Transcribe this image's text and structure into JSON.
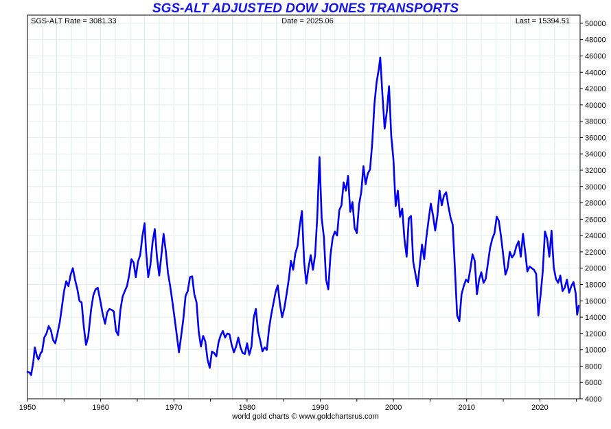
{
  "chart_data": {
    "type": "line",
    "title": "SGS-ALT ADJUSTED DOW JONES TRANSPORTS",
    "info": {
      "left": "SGS-ALT Rate = 3081.33",
      "center": "Date = 2025.06",
      "right": "Last = 15394.51"
    },
    "footer": "world gold charts © www.goldchartsrus.com",
    "xlim": [
      1950,
      2025.5
    ],
    "ylim": [
      4000,
      51000
    ],
    "x_ticks": [
      1950,
      1960,
      1970,
      1980,
      1990,
      2000,
      2010,
      2020
    ],
    "y_ticks": [
      4000,
      6000,
      8000,
      10000,
      12000,
      14000,
      16000,
      18000,
      20000,
      22000,
      24000,
      26000,
      28000,
      30000,
      32000,
      34000,
      36000,
      38000,
      40000,
      42000,
      44000,
      46000,
      48000,
      50000
    ],
    "y_axis_position": "right",
    "grid": true,
    "line_color": "#0000ee",
    "series": [
      {
        "x": [
          1950.0,
          1950.3,
          1950.5,
          1950.8,
          1951.0,
          1951.3,
          1951.5,
          1951.8,
          1952.0,
          1952.3,
          1952.6,
          1952.9,
          1953.2,
          1953.5,
          1953.8,
          1954.1,
          1954.4,
          1954.7,
          1955.0,
          1955.3,
          1955.6,
          1955.9,
          1956.2,
          1956.5,
          1956.8,
          1957.1,
          1957.4,
          1957.7,
          1958.0,
          1958.3,
          1958.7,
          1959.0,
          1959.3,
          1959.6,
          1960.0,
          1960.3,
          1960.6,
          1960.9,
          1961.2,
          1961.5,
          1961.8,
          1962.1,
          1962.4,
          1962.7,
          1963.0,
          1963.3,
          1963.6,
          1963.9,
          1964.2,
          1964.5,
          1964.8,
          1965.1,
          1965.4,
          1965.7,
          1966.0,
          1966.2,
          1966.5,
          1966.8,
          1967.1,
          1967.4,
          1967.7,
          1968.0,
          1968.3,
          1968.6,
          1968.9,
          1969.2,
          1969.5,
          1969.8,
          1970.1,
          1970.4,
          1970.7,
          1971.0,
          1971.3,
          1971.6,
          1971.9,
          1972.2,
          1972.5,
          1972.8,
          1973.1,
          1973.4,
          1973.7,
          1974.0,
          1974.3,
          1974.6,
          1974.9,
          1975.2,
          1975.5,
          1975.8,
          1976.1,
          1976.4,
          1976.7,
          1977.0,
          1977.3,
          1977.6,
          1977.9,
          1978.2,
          1978.5,
          1978.8,
          1979.1,
          1979.4,
          1979.7,
          1980.0,
          1980.3,
          1980.6,
          1980.9,
          1981.2,
          1981.5,
          1981.8,
          1982.1,
          1982.4,
          1982.7,
          1983.0,
          1983.3,
          1983.6,
          1983.9,
          1984.2,
          1984.5,
          1984.8,
          1985.1,
          1985.4,
          1985.7,
          1986.0,
          1986.3,
          1986.6,
          1986.9,
          1987.2,
          1987.5,
          1987.8,
          1988.1,
          1988.4,
          1988.7,
          1989.0,
          1989.3,
          1989.6,
          1989.9,
          1990.2,
          1990.5,
          1990.8,
          1991.1,
          1991.4,
          1991.7,
          1992.0,
          1992.3,
          1992.6,
          1992.9,
          1993.2,
          1993.5,
          1993.8,
          1994.1,
          1994.4,
          1994.7,
          1995.0,
          1995.3,
          1995.6,
          1995.9,
          1996.2,
          1996.5,
          1996.8,
          1997.1,
          1997.4,
          1997.7,
          1998.0,
          1998.2,
          1998.5,
          1998.8,
          1999.1,
          1999.4,
          1999.7,
          2000.0,
          2000.3,
          2000.6,
          2000.9,
          2001.2,
          2001.5,
          2001.8,
          2002.1,
          2002.4,
          2002.7,
          2003.0,
          2003.3,
          2003.6,
          2003.9,
          2004.2,
          2004.5,
          2004.8,
          2005.1,
          2005.4,
          2005.7,
          2006.0,
          2006.3,
          2006.6,
          2006.9,
          2007.2,
          2007.5,
          2007.8,
          2008.1,
          2008.4,
          2008.7,
          2009.0,
          2009.3,
          2009.6,
          2009.9,
          2010.2,
          2010.5,
          2010.8,
          2011.1,
          2011.4,
          2011.7,
          2012.0,
          2012.3,
          2012.6,
          2012.9,
          2013.2,
          2013.5,
          2013.8,
          2014.1,
          2014.4,
          2014.7,
          2015.0,
          2015.3,
          2015.6,
          2015.9,
          2016.2,
          2016.5,
          2016.8,
          2017.1,
          2017.4,
          2017.7,
          2018.0,
          2018.3,
          2018.6,
          2018.9,
          2019.2,
          2019.5,
          2019.8,
          2020.1,
          2020.4,
          2020.7,
          2021.0,
          2021.3,
          2021.6,
          2021.9,
          2022.2,
          2022.5,
          2022.8,
          2023.1,
          2023.4,
          2023.7,
          2024.0,
          2024.3,
          2024.6,
          2024.9,
          2025.1,
          2025.3
        ],
        "y": [
          7300,
          7200,
          6900,
          8500,
          10300,
          9200,
          8800,
          9600,
          9800,
          11500,
          12000,
          12900,
          12400,
          11200,
          10800,
          12000,
          13300,
          15200,
          17200,
          18400,
          17800,
          19200,
          20000,
          18600,
          17500,
          16000,
          15800,
          12800,
          10600,
          11600,
          15000,
          16700,
          17400,
          17600,
          15800,
          14300,
          13200,
          14600,
          15000,
          14900,
          14700,
          12300,
          11800,
          14900,
          16500,
          17200,
          17800,
          19200,
          21100,
          20700,
          18900,
          20800,
          21600,
          23900,
          25500,
          22200,
          18900,
          20400,
          23200,
          24800,
          21300,
          19100,
          21600,
          24200,
          22100,
          19400,
          17800,
          15900,
          13900,
          11800,
          9700,
          11700,
          13800,
          16600,
          17200,
          18900,
          19000,
          16800,
          15800,
          12200,
          10400,
          11700,
          11000,
          8800,
          7800,
          9800,
          9600,
          9200,
          10900,
          11800,
          12300,
          11500,
          12000,
          11900,
          10600,
          9700,
          10400,
          11500,
          10300,
          9600,
          9500,
          10800,
          9400,
          10400,
          13900,
          15000,
          12300,
          11100,
          9800,
          10300,
          10000,
          12600,
          14300,
          15700,
          17100,
          17900,
          15600,
          14000,
          15100,
          16800,
          18600,
          20900,
          19800,
          21800,
          22700,
          25200,
          27000,
          20800,
          18100,
          20100,
          21600,
          19800,
          21600,
          26400,
          33600,
          26100,
          23800,
          18600,
          17400,
          21600,
          23700,
          24500,
          24000,
          27100,
          27700,
          30500,
          29500,
          31300,
          26900,
          28100,
          24900,
          24300,
          27800,
          29300,
          32500,
          30300,
          31600,
          32100,
          35300,
          40100,
          42800,
          44400,
          45800,
          41200,
          37100,
          39200,
          42300,
          36200,
          33300,
          27600,
          29500,
          26300,
          27300,
          23600,
          21400,
          26100,
          26400,
          20800,
          19300,
          17800,
          20400,
          22900,
          21100,
          23800,
          25900,
          27900,
          26500,
          24600,
          26400,
          29500,
          27700,
          28900,
          29300,
          27600,
          26200,
          25300,
          19800,
          14200,
          13500,
          16800,
          17800,
          18600,
          18300,
          19900,
          21700,
          20900,
          16800,
          18600,
          19500,
          18200,
          18700,
          20600,
          22500,
          23600,
          24300,
          26300,
          25800,
          23900,
          21600,
          19200,
          20000,
          22000,
          21300,
          21700,
          22700,
          23300,
          21400,
          24200,
          22000,
          19600,
          20200,
          20000,
          19800,
          19300,
          14200,
          16700,
          19600,
          24500,
          23600,
          21400,
          24600,
          20100,
          18700,
          18200,
          19100,
          17200,
          17600,
          18600,
          17000,
          17800,
          18300,
          16900,
          14300,
          15394
        ]
      }
    ]
  }
}
